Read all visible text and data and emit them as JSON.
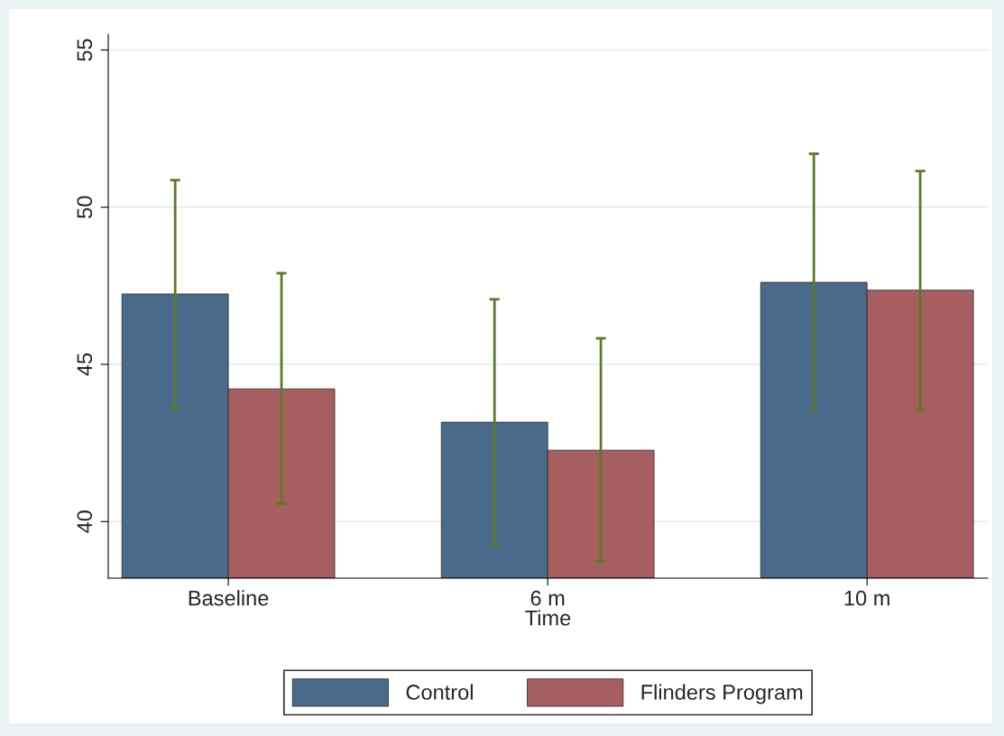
{
  "chart_data": {
    "type": "bar",
    "xlabel": "Time",
    "categories": [
      "Baseline",
      "6 m",
      "10 m"
    ],
    "series": [
      {
        "name": "Control",
        "color": "#4a6a8c",
        "values": [
          47.24,
          43.16,
          47.61
        ],
        "errors": [
          [
            43.59,
            50.86
          ],
          [
            39.25,
            47.07
          ],
          [
            43.53,
            51.7
          ]
        ]
      },
      {
        "name": "Flinders Program",
        "color": "#a65e60",
        "values": [
          44.22,
          42.27,
          47.36
        ],
        "errors": [
          [
            40.57,
            47.9
          ],
          [
            38.74,
            45.83
          ],
          [
            43.56,
            51.15
          ]
        ]
      }
    ],
    "ylim": [
      38.2,
      55.5
    ],
    "yticks": [
      40,
      45,
      50,
      55
    ],
    "grid": "y",
    "legend": "bottom"
  }
}
